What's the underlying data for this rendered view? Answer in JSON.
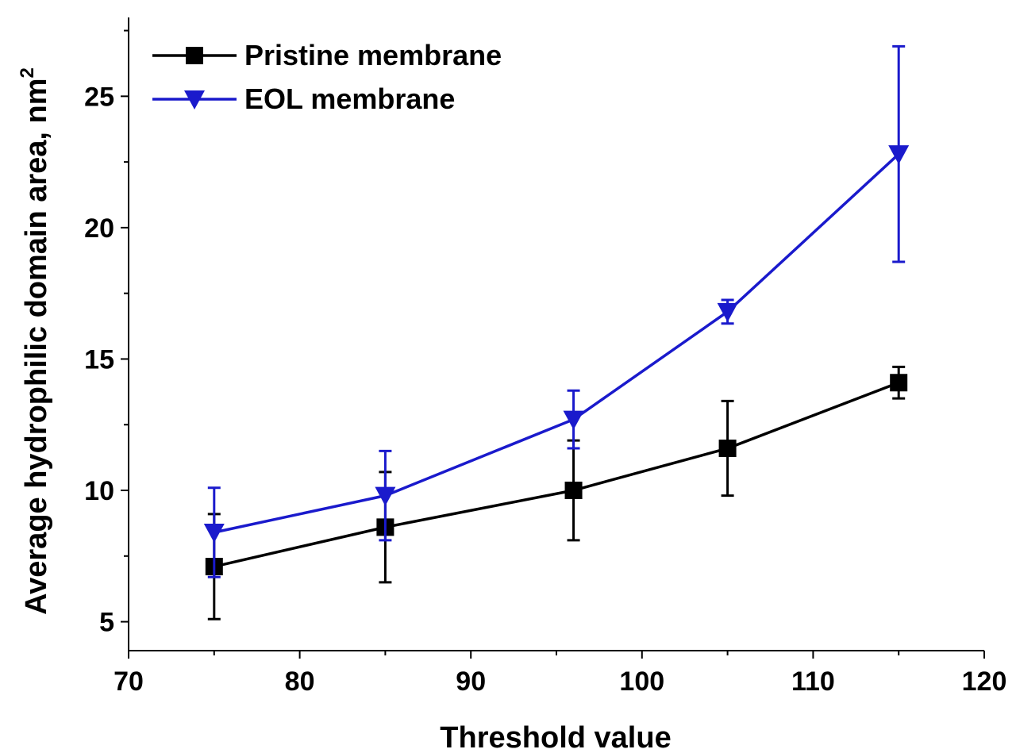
{
  "chart_data": {
    "type": "line",
    "title": "",
    "xlabel": "Threshold value",
    "ylabel": "Average hydrophilic domain area, nm",
    "ylabel_superscript": "2",
    "xlim": [
      70,
      120
    ],
    "ylim": [
      3.9,
      28
    ],
    "xticks": [
      70,
      80,
      90,
      100,
      110,
      120
    ],
    "yticks": [
      5,
      10,
      15,
      20,
      25
    ],
    "grid": false,
    "legend_position": "top-left",
    "series": [
      {
        "name": "Pristine membrane",
        "color": "#000000",
        "marker": "square",
        "x": [
          75,
          85,
          96,
          105,
          115
        ],
        "y": [
          7.1,
          8.6,
          10.0,
          11.6,
          14.1
        ],
        "error": [
          2.0,
          2.1,
          1.9,
          1.8,
          0.6
        ]
      },
      {
        "name": "EOL membrane",
        "color": "#1a1acc",
        "marker": "triangle-down",
        "x": [
          75,
          85,
          96,
          105,
          115
        ],
        "y": [
          8.4,
          9.8,
          12.7,
          16.8,
          22.8
        ],
        "error": [
          1.7,
          1.7,
          1.1,
          0.45,
          4.1
        ]
      }
    ]
  }
}
